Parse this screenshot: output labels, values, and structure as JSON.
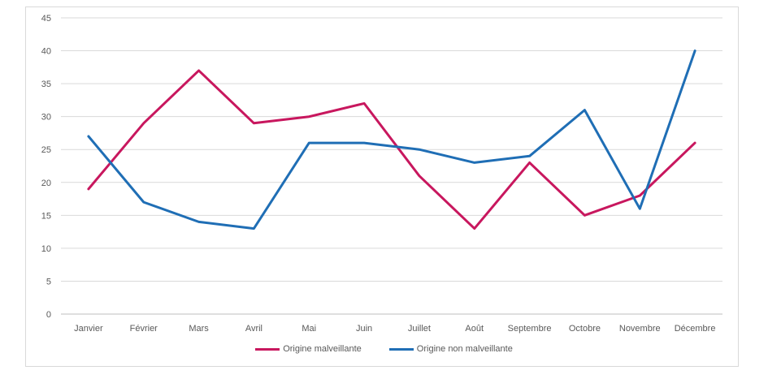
{
  "chart_data": {
    "type": "line",
    "categories": [
      "Janvier",
      "Février",
      "Mars",
      "Avril",
      "Mai",
      "Juin",
      "Juillet",
      "Août",
      "Septembre",
      "Octobre",
      "Novembre",
      "Décembre"
    ],
    "series": [
      {
        "name": "Origine malveillante",
        "color": "#c8175e",
        "values": [
          19,
          29,
          37,
          29,
          30,
          32,
          21,
          13,
          23,
          15,
          18,
          26
        ]
      },
      {
        "name": "Origine non malveillante",
        "color": "#1f6eb5",
        "values": [
          27,
          17,
          14,
          13,
          26,
          26,
          25,
          23,
          24,
          31,
          16,
          40
        ]
      }
    ],
    "yticks": [
      "0",
      "5",
      "10",
      "15",
      "20",
      "25",
      "30",
      "35",
      "40",
      "45"
    ],
    "ylim": [
      0,
      45
    ],
    "title": "",
    "xlabel": "",
    "ylabel": "",
    "grid": true,
    "legend_position": "bottom"
  }
}
